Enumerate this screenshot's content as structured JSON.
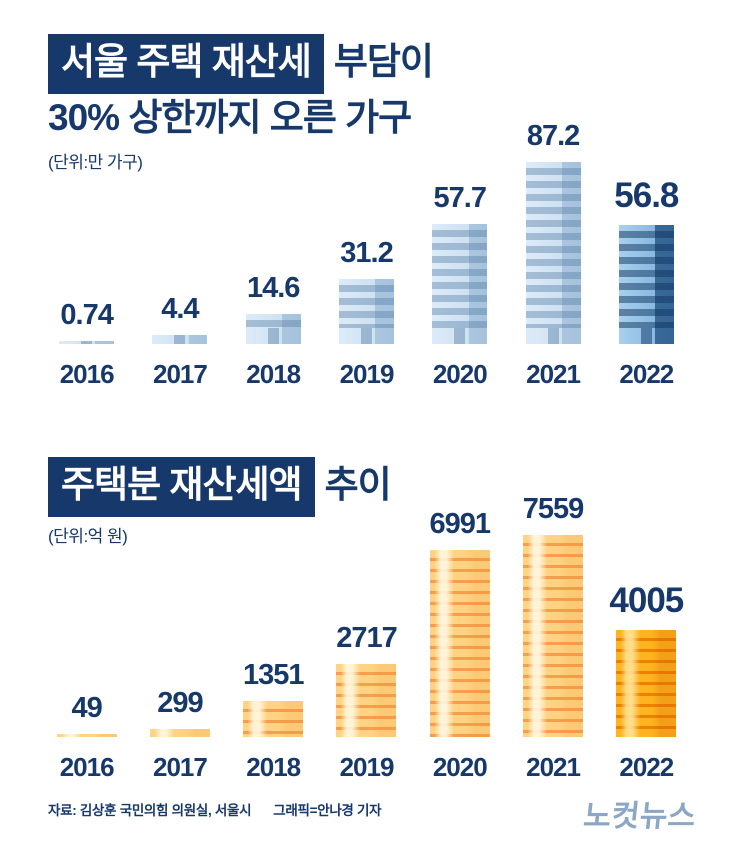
{
  "page": {
    "background": "#FFFFFF"
  },
  "colors": {
    "navy": "#17386B",
    "logo_blue": "#8CA7C6",
    "building_light": "#C9DEF0",
    "building_highlight": "#1B4F8A",
    "coin_light": "#FFCF7D",
    "coin_highlight": "#FFA81E"
  },
  "sections": [
    {
      "title_box": "서울 주택 재산세",
      "title_after": "부담이",
      "title_line2": "30% 상한까지 오른 가구",
      "unit_label": "(단위:만 가구)"
    },
    {
      "title_box": "주택분 재산세액",
      "title_after": "추이",
      "unit_label": "(단위:억 원)"
    }
  ],
  "chart_data": [
    {
      "type": "bar",
      "bar_style": "building",
      "title": "서울 주택 재산세 부담이 30% 상한까지 오른 가구",
      "unit": "만 가구",
      "categories": [
        "2016",
        "2017",
        "2018",
        "2019",
        "2020",
        "2021",
        "2022"
      ],
      "values": [
        0.74,
        4.4,
        14.6,
        31.2,
        57.7,
        87.2,
        56.8
      ],
      "value_labels": [
        "0.74",
        "4.4",
        "14.6",
        "31.2",
        "57.7",
        "87.2",
        "56.8"
      ],
      "highlight_index": 6,
      "ylim": [
        0,
        87.2
      ],
      "grid": false,
      "legend": "none"
    },
    {
      "type": "bar",
      "bar_style": "coin-stack",
      "title": "주택분 재산세액 추이",
      "unit": "억 원",
      "categories": [
        "2016",
        "2017",
        "2018",
        "2019",
        "2020",
        "2021",
        "2022"
      ],
      "values": [
        49,
        299,
        1351,
        2717,
        6991,
        7559,
        4005
      ],
      "value_labels": [
        "49",
        "299",
        "1351",
        "2717",
        "6991",
        "7559",
        "4005"
      ],
      "highlight_index": 6,
      "ylim": [
        0,
        7559
      ],
      "grid": false,
      "legend": "none"
    }
  ],
  "footer": {
    "source": "자료: 김상훈 국민의힘 의원실, 서울시",
    "credit": "그래픽=안나경 기자",
    "logo": "노컷뉴스"
  }
}
